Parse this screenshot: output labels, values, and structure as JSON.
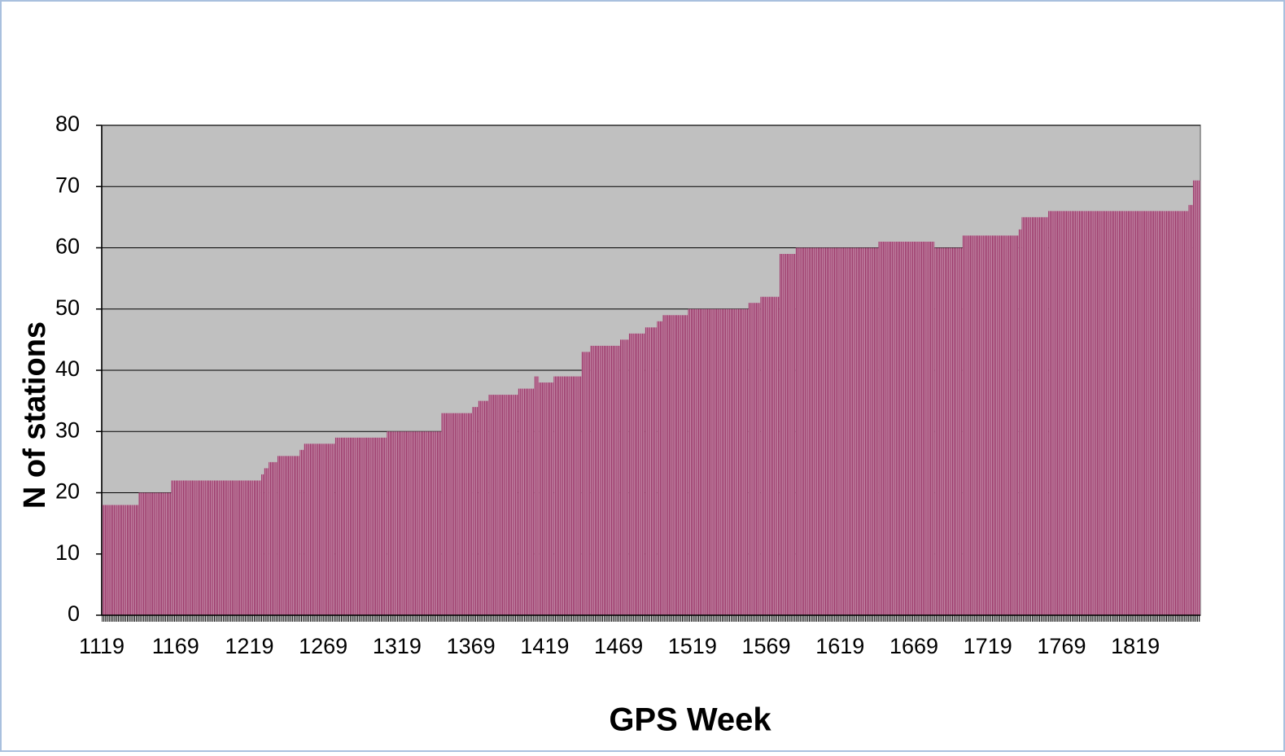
{
  "chart_data": {
    "type": "histogram",
    "x_label": "GPS Week",
    "y_label": "N of stations",
    "bins": [
      1119,
      1144,
      1166,
      1227,
      1229,
      1232,
      1238,
      1253,
      1256,
      1277,
      1312,
      1349,
      1370,
      1374,
      1381,
      1401,
      1412,
      1415,
      1425,
      1444,
      1450,
      1470,
      1476,
      1487,
      1495,
      1499,
      1516,
      1557,
      1565,
      1578,
      1589,
      1645,
      1683,
      1702,
      1740,
      1742,
      1760,
      1855,
      1858,
      1863
    ],
    "values": [
      18,
      20,
      22,
      23,
      24,
      25,
      26,
      27,
      28,
      29,
      30,
      33,
      34,
      35,
      36,
      37,
      39,
      38,
      39,
      43,
      44,
      45,
      46,
      47,
      48,
      49,
      50,
      51,
      52,
      59,
      60,
      61,
      60,
      62,
      63,
      65,
      66,
      67,
      71
    ],
    "color": "#993366",
    "xlim": [
      1119,
      1863
    ],
    "xticks": [
      1119,
      1169,
      1219,
      1269,
      1319,
      1369,
      1419,
      1469,
      1519,
      1569,
      1619,
      1669,
      1719,
      1769,
      1819
    ],
    "ylim": [
      0,
      80
    ],
    "yticks": [
      0,
      10,
      20,
      30,
      40,
      50,
      60,
      70,
      80
    ],
    "grid": true
  }
}
